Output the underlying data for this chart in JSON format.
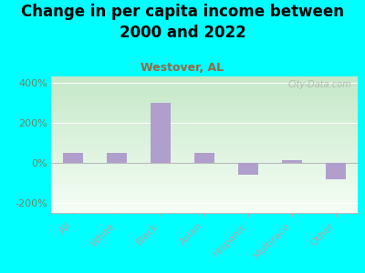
{
  "title": "Change in per capita income between\n2000 and 2022",
  "subtitle": "Westover, AL",
  "categories": [
    "All",
    "White",
    "Black",
    "Asian",
    "Hispanic",
    "Multirace",
    "Other"
  ],
  "values": [
    50,
    50,
    300,
    50,
    -60,
    15,
    -80
  ],
  "bar_color": "#b09fcc",
  "background_color": "#00FFFF",
  "title_fontsize": 12,
  "subtitle_fontsize": 9,
  "subtitle_color": "#996644",
  "ytick_color": "#668866",
  "xtick_color": "#448844",
  "ylim": [
    -250,
    430
  ],
  "yticks": [
    -200,
    0,
    200,
    400
  ],
  "watermark": "City-Data.com"
}
